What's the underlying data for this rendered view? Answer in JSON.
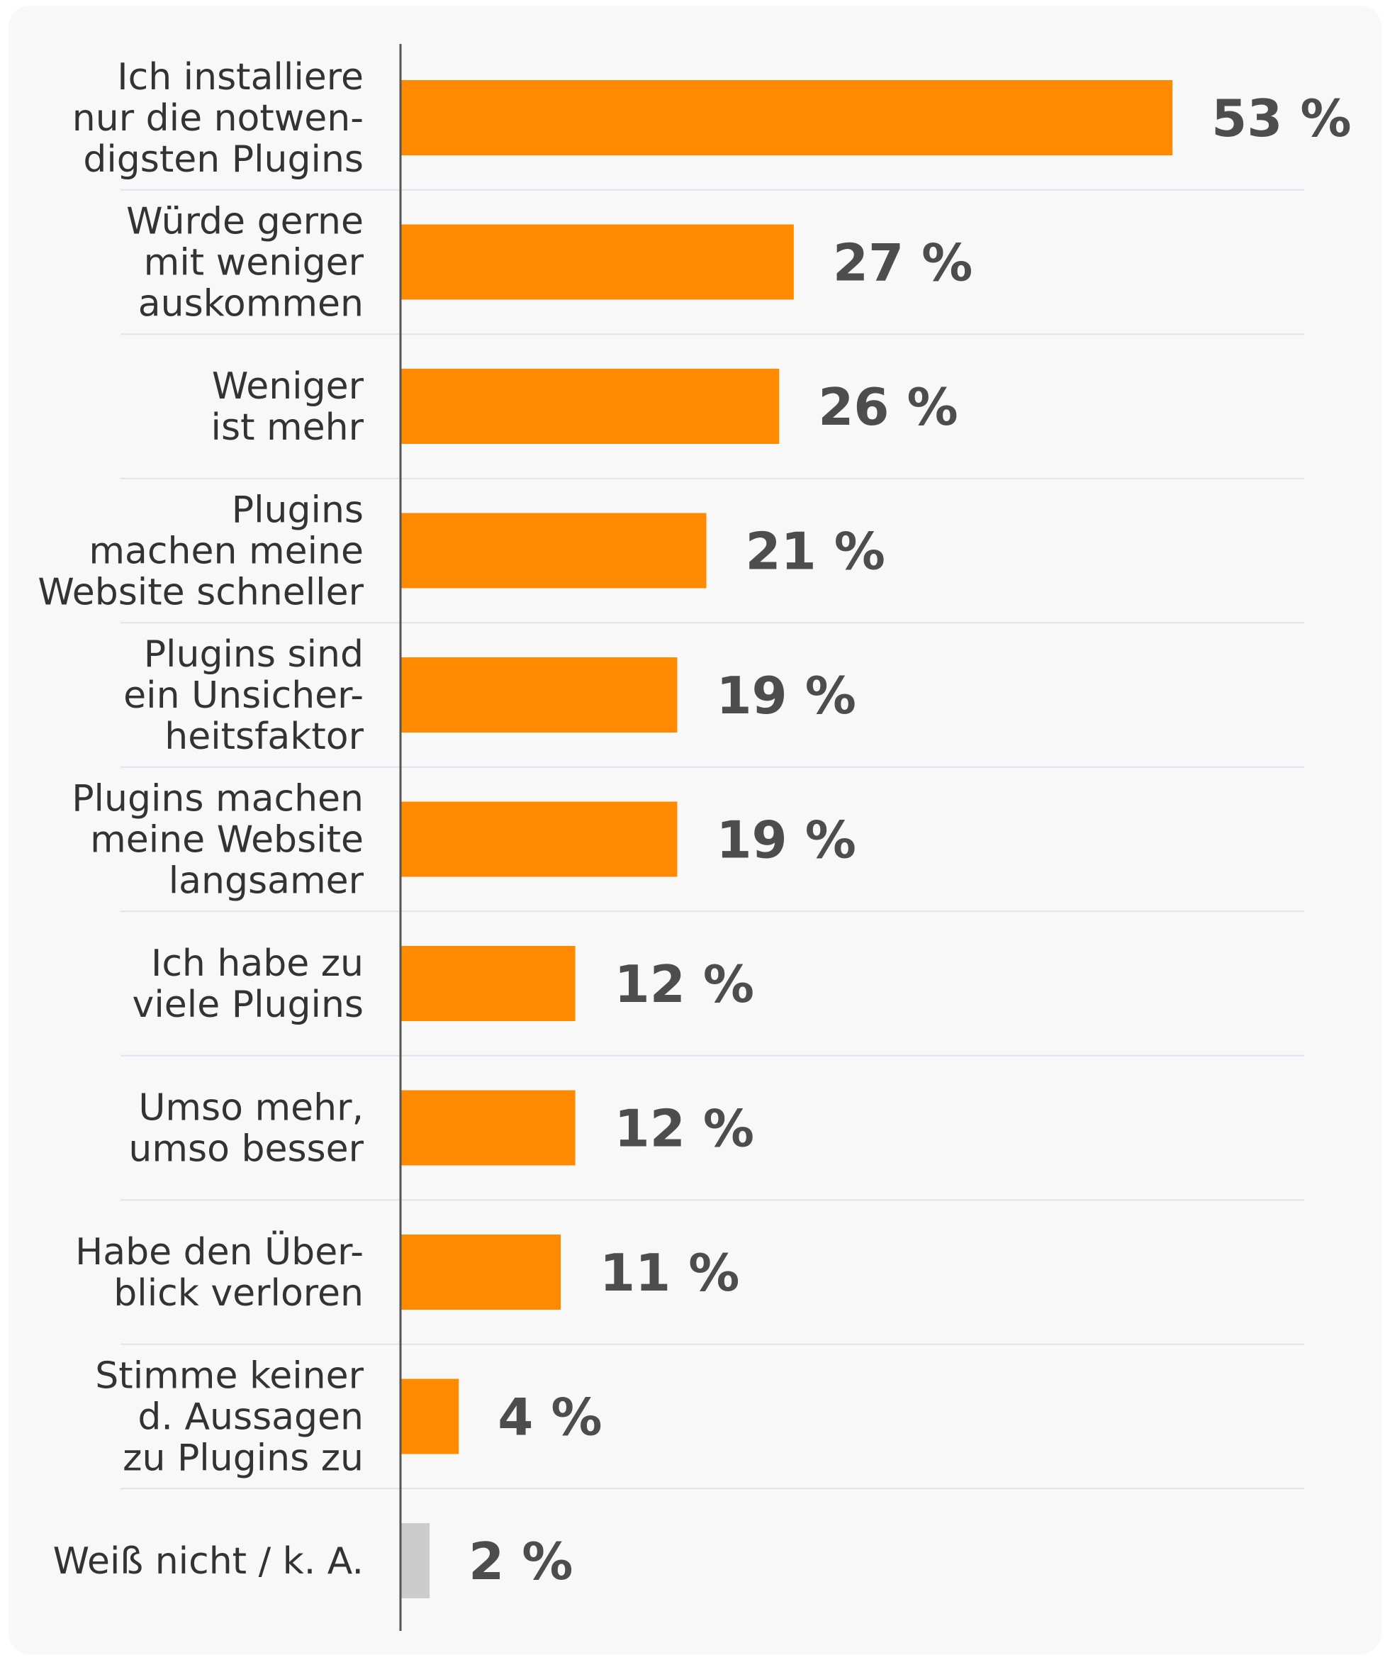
{
  "colors": {
    "background": "#f8f8f8",
    "bar": "#ff8a00",
    "bar_muted": "#cccccc",
    "axis": "#555555",
    "gridline": "#dfe3ec",
    "category_text": "#333333",
    "value_text": "#4d4d4d"
  },
  "chart_data": {
    "type": "bar",
    "orientation": "horizontal",
    "title": "",
    "xlabel": "",
    "ylabel": "",
    "xlim": [
      0,
      60
    ],
    "grid": true,
    "legend": "none",
    "unit": "%",
    "categories": [
      [
        "Ich installiere",
        "nur die notwen-",
        "digsten Plugins"
      ],
      [
        "Würde gerne",
        "mit weniger",
        "auskommen"
      ],
      [
        "Weniger",
        "ist mehr"
      ],
      [
        "Plugins",
        "machen meine",
        "Website schneller"
      ],
      [
        "Plugins sind",
        "ein Unsicher-",
        "heitsfaktor"
      ],
      [
        "Plugins machen",
        "meine Website",
        "langsamer"
      ],
      [
        "Ich habe zu",
        "viele Plugins"
      ],
      [
        "Umso mehr,",
        "umso besser"
      ],
      [
        "Habe den Über-",
        "blick verloren"
      ],
      [
        "Stimme keiner",
        "d. Aussagen",
        "zu Plugins zu"
      ],
      [
        "Weiß nicht / k. A."
      ]
    ],
    "values": [
      53,
      27,
      26,
      21,
      19,
      19,
      12,
      12,
      11,
      4,
      2
    ],
    "value_labels": [
      "53 %",
      "27 %",
      "26 %",
      "21 %",
      "19 %",
      "19 %",
      "12 %",
      "12 %",
      "11 %",
      "4 %",
      "2 %"
    ],
    "muted": [
      false,
      false,
      false,
      false,
      false,
      false,
      false,
      false,
      false,
      false,
      true
    ]
  }
}
